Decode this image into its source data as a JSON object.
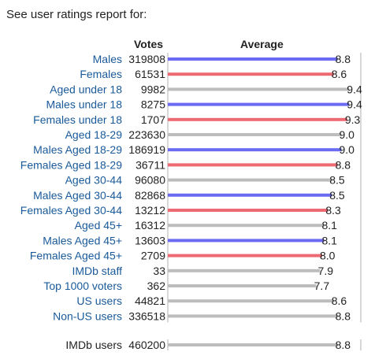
{
  "intro": "See user ratings report for:",
  "headers": {
    "votes": "Votes",
    "average": "Average"
  },
  "colors": {
    "male": "#6a6af2",
    "female": "#ee6a72",
    "other": "#bdbdbd",
    "link": "#1a5a9a",
    "plain": "#222222",
    "axis": "#b0b0b0"
  },
  "chart_data": {
    "type": "bar",
    "orientation": "horizontal",
    "xlim": [
      0,
      10
    ],
    "grid": false,
    "legend": "none",
    "rows": [
      {
        "label": "Males",
        "votes": "319808",
        "average": 8.8,
        "average_label": "8.8",
        "group": "male",
        "link": true
      },
      {
        "label": "Females",
        "votes": "61531",
        "average": 8.6,
        "average_label": "8.6",
        "group": "female",
        "link": true
      },
      {
        "label": "Aged under 18",
        "votes": "9982",
        "average": 9.4,
        "average_label": "9.4",
        "group": "other",
        "link": true
      },
      {
        "label": "Males under 18",
        "votes": "8275",
        "average": 9.4,
        "average_label": "9.4",
        "group": "male",
        "link": true
      },
      {
        "label": "Females under 18",
        "votes": "1707",
        "average": 9.3,
        "average_label": "9.3",
        "group": "female",
        "link": true
      },
      {
        "label": "Aged 18-29",
        "votes": "223630",
        "average": 9.0,
        "average_label": "9.0",
        "group": "other",
        "link": true
      },
      {
        "label": "Males Aged 18-29",
        "votes": "186919",
        "average": 9.0,
        "average_label": "9.0",
        "group": "male",
        "link": true
      },
      {
        "label": "Females Aged 18-29",
        "votes": "36711",
        "average": 8.8,
        "average_label": "8.8",
        "group": "female",
        "link": true
      },
      {
        "label": "Aged 30-44",
        "votes": "96080",
        "average": 8.5,
        "average_label": "8.5",
        "group": "other",
        "link": true
      },
      {
        "label": "Males Aged 30-44",
        "votes": "82868",
        "average": 8.5,
        "average_label": "8.5",
        "group": "male",
        "link": true
      },
      {
        "label": "Females Aged 30-44",
        "votes": "13212",
        "average": 8.3,
        "average_label": "8.3",
        "group": "female",
        "link": true
      },
      {
        "label": "Aged 45+",
        "votes": "16312",
        "average": 8.1,
        "average_label": "8.1",
        "group": "other",
        "link": true
      },
      {
        "label": "Males Aged 45+",
        "votes": "13603",
        "average": 8.1,
        "average_label": "8.1",
        "group": "male",
        "link": true
      },
      {
        "label": "Females Aged 45+",
        "votes": "2709",
        "average": 8.0,
        "average_label": "8.0",
        "group": "female",
        "link": true
      },
      {
        "label": "IMDb staff",
        "votes": "33",
        "average": 7.9,
        "average_label": "7.9",
        "group": "other",
        "link": true
      },
      {
        "label": "Top 1000 voters",
        "votes": "362",
        "average": 7.7,
        "average_label": "7.7",
        "group": "other",
        "link": true
      },
      {
        "label": "US users",
        "votes": "44821",
        "average": 8.6,
        "average_label": "8.6",
        "group": "other",
        "link": true
      },
      {
        "label": "Non-US users",
        "votes": "336518",
        "average": 8.8,
        "average_label": "8.8",
        "group": "other",
        "link": true
      }
    ],
    "total": {
      "label": "IMDb users",
      "votes": "460200",
      "average": 8.8,
      "average_label": "8.8",
      "group": "other",
      "link": false
    }
  }
}
